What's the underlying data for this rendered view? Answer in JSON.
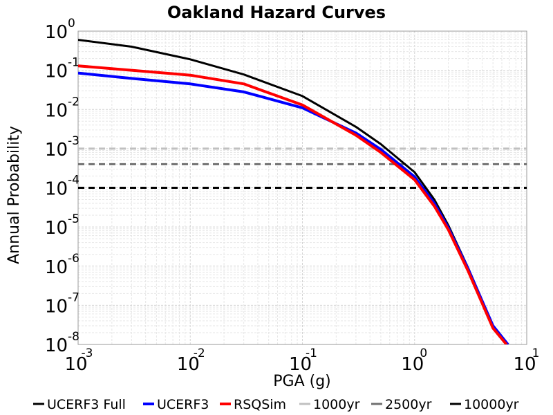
{
  "chart_data": {
    "type": "line",
    "title": "Oakland Hazard Curves",
    "xlabel": "PGA (g)",
    "ylabel": "Annual Probability",
    "x_scale": "log",
    "y_scale": "log",
    "xlim": [
      0.001,
      10
    ],
    "ylim": [
      1e-08,
      1
    ],
    "x_ticks": [
      {
        "base": "10",
        "exp": "-3",
        "value": 0.001
      },
      {
        "base": "10",
        "exp": "-2",
        "value": 0.01
      },
      {
        "base": "10",
        "exp": "-1",
        "value": 0.1
      },
      {
        "base": "10",
        "exp": "0",
        "value": 1
      },
      {
        "base": "10",
        "exp": "1",
        "value": 10
      }
    ],
    "y_ticks": [
      {
        "base": "10",
        "exp": "0",
        "value": 1
      },
      {
        "base": "10",
        "exp": "-1",
        "value": 0.1
      },
      {
        "base": "10",
        "exp": "-2",
        "value": 0.01
      },
      {
        "base": "10",
        "exp": "-3",
        "value": 0.001
      },
      {
        "base": "10",
        "exp": "-4",
        "value": 0.0001
      },
      {
        "base": "10",
        "exp": "-5",
        "value": 1e-05
      },
      {
        "base": "10",
        "exp": "-6",
        "value": 1e-06
      },
      {
        "base": "10",
        "exp": "-7",
        "value": 1e-07
      },
      {
        "base": "10",
        "exp": "-8",
        "value": 1e-08
      }
    ],
    "grid": true,
    "legend_position": "bottom",
    "series": [
      {
        "name": "UCERF3 Full",
        "color": "#000000",
        "style": "solid",
        "x": [
          0.001,
          0.003,
          0.01,
          0.03,
          0.1,
          0.3,
          0.5,
          1.0,
          1.5,
          2.0,
          3.0,
          5.0,
          6.8
        ],
        "y": [
          0.6,
          0.4,
          0.19,
          0.078,
          0.022,
          0.0036,
          0.0013,
          0.00025,
          5e-05,
          1.1e-05,
          9e-07,
          3e-08,
          1e-08
        ]
      },
      {
        "name": "UCERF3",
        "color": "#0000ff",
        "style": "solid",
        "x": [
          0.001,
          0.003,
          0.01,
          0.03,
          0.1,
          0.3,
          0.5,
          1.0,
          1.5,
          2.0,
          3.0,
          5.0,
          6.8
        ],
        "y": [
          0.085,
          0.062,
          0.045,
          0.028,
          0.011,
          0.0025,
          0.00095,
          0.00019,
          4e-05,
          9.5e-06,
          8.5e-07,
          3e-08,
          1e-08
        ]
      },
      {
        "name": "RSQSim",
        "color": "#ff0000",
        "style": "solid",
        "x": [
          0.001,
          0.003,
          0.01,
          0.03,
          0.1,
          0.3,
          0.5,
          1.0,
          1.5,
          2.0,
          3.0,
          5.0,
          6.6
        ],
        "y": [
          0.13,
          0.1,
          0.075,
          0.045,
          0.013,
          0.0022,
          0.0008,
          0.00016,
          3.4e-05,
          8.5e-06,
          7.5e-07,
          2.6e-08,
          1e-08
        ]
      },
      {
        "name": "1000yr",
        "color": "#c0c0c0",
        "style": "dashed",
        "x": [
          0.001,
          10
        ],
        "y": [
          0.001,
          0.001
        ]
      },
      {
        "name": "2500yr",
        "color": "#707070",
        "style": "dashed",
        "x": [
          0.001,
          10
        ],
        "y": [
          0.0004,
          0.0004
        ]
      },
      {
        "name": "10000yr",
        "color": "#000000",
        "style": "dashed",
        "x": [
          0.001,
          10
        ],
        "y": [
          0.0001,
          0.0001
        ]
      }
    ]
  }
}
